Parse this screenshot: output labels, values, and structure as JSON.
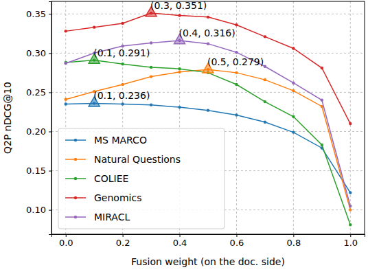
{
  "chart_data": {
    "type": "line",
    "x_label": "Fusion weight (on the doc. side)",
    "y_label": "Q2P nDCG@10",
    "x": [
      0.0,
      0.1,
      0.2,
      0.3,
      0.4,
      0.5,
      0.6,
      0.7,
      0.8,
      0.9,
      1.0
    ],
    "series": [
      {
        "name": "MS MARCO",
        "color": "#1f77b4",
        "marker": "o",
        "values": [
          0.235,
          0.236,
          0.235,
          0.234,
          0.231,
          0.227,
          0.221,
          0.212,
          0.199,
          0.179,
          0.122
        ]
      },
      {
        "name": "Natural Questions",
        "color": "#ff7f0e",
        "marker": "o",
        "values": [
          0.241,
          0.251,
          0.26,
          0.27,
          0.276,
          0.279,
          0.275,
          0.266,
          0.252,
          0.232,
          0.1
        ]
      },
      {
        "name": "COLIEE",
        "color": "#2ca02c",
        "marker": "o",
        "values": [
          0.288,
          0.291,
          0.286,
          0.282,
          0.28,
          0.275,
          0.26,
          0.238,
          0.219,
          0.183,
          0.081
        ]
      },
      {
        "name": "Genomics",
        "color": "#d62728",
        "marker": "o",
        "values": [
          0.328,
          0.333,
          0.338,
          0.351,
          0.348,
          0.346,
          0.336,
          0.321,
          0.306,
          0.281,
          0.21
        ]
      },
      {
        "name": "MIRACL",
        "color": "#9467bd",
        "marker": "o",
        "values": [
          0.287,
          0.3,
          0.309,
          0.313,
          0.316,
          0.312,
          0.301,
          0.283,
          0.262,
          0.24,
          0.105
        ]
      }
    ],
    "annotations": [
      {
        "text": "(0.1, 0.236)",
        "x": 0.1,
        "y": 0.236,
        "color": "#1f77b4",
        "marker": "triangle"
      },
      {
        "text": "(0.5, 0.279)",
        "x": 0.5,
        "y": 0.279,
        "color": "#ff7f0e",
        "marker": "triangle"
      },
      {
        "text": "(0.1, 0.291)",
        "x": 0.1,
        "y": 0.291,
        "color": "#2ca02c",
        "marker": "triangle"
      },
      {
        "text": "(0.3, 0.351)",
        "x": 0.3,
        "y": 0.351,
        "color": "#d62728",
        "marker": "triangle"
      },
      {
        "text": "(0.4, 0.316)",
        "x": 0.4,
        "y": 0.316,
        "color": "#9467bd",
        "marker": "triangle"
      }
    ],
    "xlim": [
      -0.05,
      1.05
    ],
    "ylim": [
      0.069,
      0.366
    ],
    "xticks": [
      {
        "value": 0.0,
        "label": "0.0"
      },
      {
        "value": 0.2,
        "label": "0.2"
      },
      {
        "value": 0.4,
        "label": "0.4"
      },
      {
        "value": 0.6,
        "label": "0.6"
      },
      {
        "value": 0.8,
        "label": "0.8"
      },
      {
        "value": 1.0,
        "label": "1.0"
      }
    ],
    "yticks": [
      {
        "value": 0.1,
        "label": "0.10"
      },
      {
        "value": 0.15,
        "label": "0.15"
      },
      {
        "value": 0.2,
        "label": "0.20"
      },
      {
        "value": 0.25,
        "label": "0.25"
      },
      {
        "value": 0.3,
        "label": "0.30"
      },
      {
        "value": 0.35,
        "label": "0.35"
      }
    ],
    "grid": true,
    "legend": "lower left"
  }
}
